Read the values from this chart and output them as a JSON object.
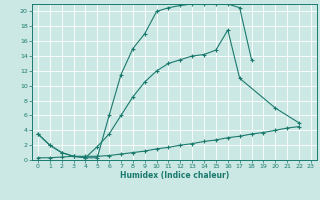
{
  "xlabel": "Humidex (Indice chaleur)",
  "bg_color": "#cce8e4",
  "grid_color": "#ffffff",
  "line_color": "#1a7a6e",
  "xlim": [
    -0.5,
    23.5
  ],
  "ylim": [
    0,
    21
  ],
  "xticks": [
    0,
    1,
    2,
    3,
    4,
    5,
    6,
    7,
    8,
    9,
    10,
    11,
    12,
    13,
    14,
    15,
    16,
    17,
    18,
    19,
    20,
    21,
    22,
    23
  ],
  "yticks": [
    0,
    2,
    4,
    6,
    8,
    10,
    12,
    14,
    16,
    18,
    20
  ],
  "curve1_x": [
    0,
    1,
    2,
    3,
    4,
    5,
    6,
    7,
    8,
    9,
    10,
    11,
    12,
    13,
    14,
    15,
    16,
    17,
    18
  ],
  "curve1_y": [
    3.5,
    2.0,
    1.0,
    0.5,
    0.3,
    0.3,
    6.0,
    11.5,
    15.0,
    17.0,
    20.0,
    20.5,
    20.8,
    21.0,
    21.0,
    21.0,
    21.0,
    20.5,
    13.5
  ],
  "curve2_x": [
    0,
    1,
    2,
    3,
    4,
    5,
    6,
    7,
    8,
    9,
    10,
    11,
    12,
    13,
    14,
    15,
    16,
    17,
    20,
    22
  ],
  "curve2_y": [
    3.5,
    2.0,
    1.0,
    0.5,
    0.3,
    1.8,
    3.5,
    6.0,
    8.5,
    10.5,
    12.0,
    13.0,
    13.5,
    14.0,
    14.2,
    14.8,
    17.5,
    11.0,
    7.0,
    5.0
  ],
  "curve3_x": [
    0,
    1,
    2,
    3,
    4,
    5,
    6,
    7,
    8,
    9,
    10,
    11,
    12,
    13,
    14,
    15,
    16,
    17,
    18,
    19,
    20,
    21,
    22
  ],
  "curve3_y": [
    0.3,
    0.3,
    0.4,
    0.5,
    0.5,
    0.5,
    0.6,
    0.8,
    1.0,
    1.2,
    1.5,
    1.7,
    2.0,
    2.2,
    2.5,
    2.7,
    3.0,
    3.2,
    3.5,
    3.7,
    4.0,
    4.3,
    4.5
  ]
}
